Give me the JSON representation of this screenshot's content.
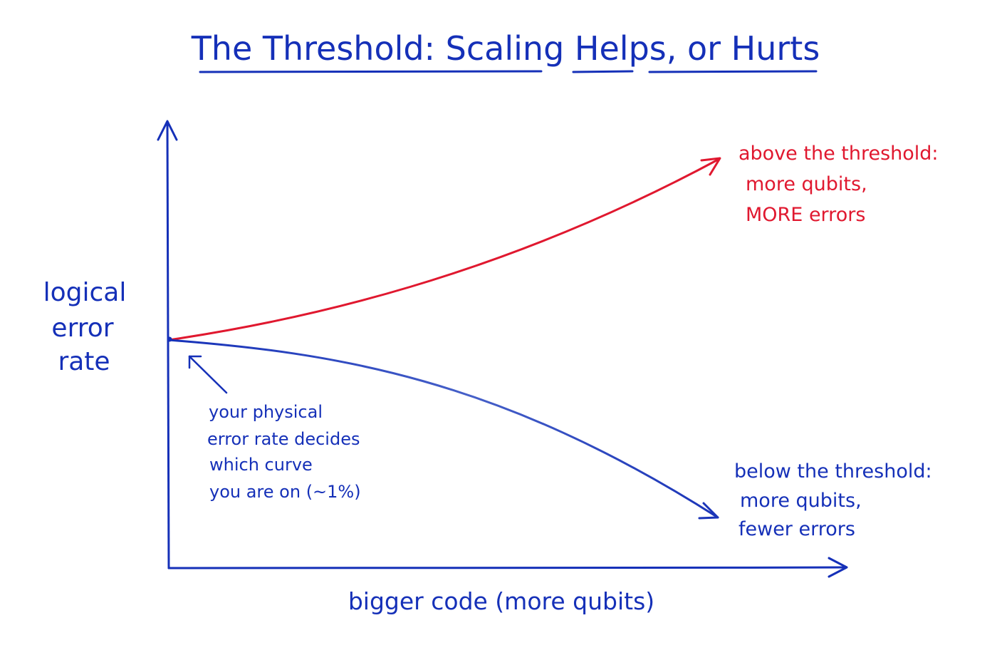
{
  "title": "The Threshold: Scaling Helps, or Hurts",
  "y_axis_label": [
    "logical",
    "error",
    "rate"
  ],
  "x_axis_label": "bigger code (more qubits)",
  "above_threshold": {
    "heading": "above the threshold:",
    "lines": [
      "more qubits,",
      "MORE errors"
    ],
    "color": "#e0182f"
  },
  "below_threshold": {
    "heading": "below the threshold:",
    "lines": [
      "more qubits,",
      "fewer errors"
    ],
    "color": "#1530b8"
  },
  "start_note": [
    "your physical",
    "error rate decides",
    "which curve",
    "you are on (~1%)"
  ],
  "colors": {
    "ink": "#1530b8",
    "red": "#e0182f",
    "background": "#ffffff"
  }
}
